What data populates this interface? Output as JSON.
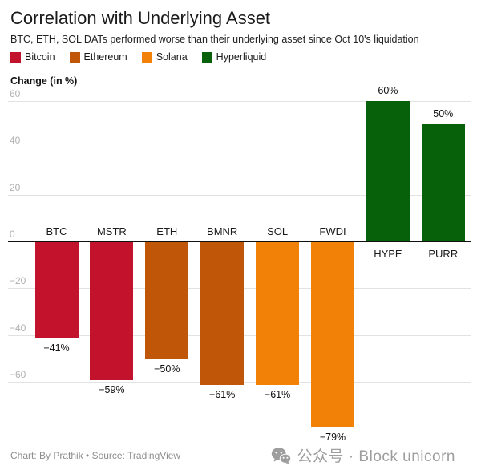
{
  "header": {
    "title": "Correlation with Underlying Asset",
    "subtitle": "BTC, ETH, SOL DATs performed worse than their underlying asset since Oct 10's liquidation"
  },
  "legend": {
    "items": [
      {
        "label": "Bitcoin",
        "color": "#c3122b"
      },
      {
        "label": "Ethereum",
        "color": "#c05708"
      },
      {
        "label": "Solana",
        "color": "#f28207"
      },
      {
        "label": "Hyperliquid",
        "color": "#07600a"
      }
    ]
  },
  "chart_data": {
    "type": "bar",
    "title": "Correlation with Underlying Asset",
    "ylabel": "Change (in %)",
    "categories": [
      "BTC",
      "MSTR",
      "ETH",
      "BMNR",
      "SOL",
      "FWDI",
      "HYPE",
      "PURR"
    ],
    "values": [
      -41,
      -59,
      -50,
      -61,
      -61,
      -79,
      60,
      50
    ],
    "value_labels": [
      "−41%",
      "−59%",
      "−50%",
      "−61%",
      "−61%",
      "−79%",
      "60%",
      "50%"
    ],
    "series_of": [
      "Bitcoin",
      "Bitcoin",
      "Ethereum",
      "Ethereum",
      "Solana",
      "Solana",
      "Hyperliquid",
      "Hyperliquid"
    ],
    "colors": {
      "Bitcoin": "#c3122b",
      "Ethereum": "#c05708",
      "Solana": "#f28207",
      "Hyperliquid": "#07600a"
    },
    "yticks": [
      60,
      40,
      20,
      0,
      -20,
      -40,
      -60
    ],
    "ylim": [
      -80,
      65
    ],
    "grid": true,
    "legend_position": "top"
  },
  "footer": {
    "credit": "Chart: By Prathik • Source: TradingView"
  },
  "watermark": {
    "icon": "wechat-icon",
    "text": "公众号 · Block unicorn"
  }
}
